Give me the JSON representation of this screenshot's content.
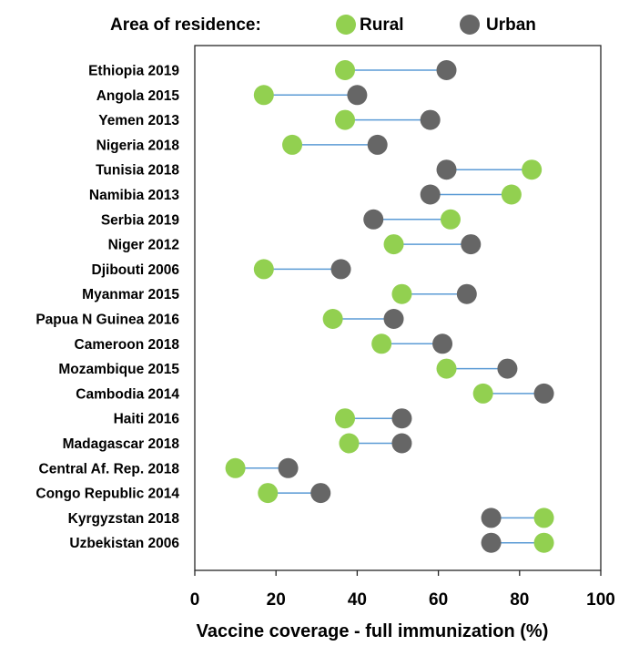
{
  "chart_data": {
    "type": "dumbbell",
    "legend": {
      "title": "Area of residence:",
      "placement": "top",
      "entries": [
        "Rural",
        "Urban"
      ]
    },
    "xlabel": "Vaccine coverage - full immunization (%)",
    "ylabel": "",
    "xlim": [
      0,
      100
    ],
    "xticks": [
      0,
      20,
      40,
      60,
      80,
      100
    ],
    "grid": false,
    "categories": [
      "Ethiopia 2019",
      "Angola 2015",
      "Yemen 2013",
      "Nigeria 2018",
      "Tunisia 2018",
      "Namibia 2013",
      "Serbia 2019",
      "Niger 2012",
      "Djibouti 2006",
      "Myanmar 2015",
      "Papua N Guinea 2016",
      "Cameroon 2018",
      "Mozambique 2015",
      "Cambodia 2014",
      "Haiti 2016",
      "Madagascar 2018",
      "Central Af. Rep. 2018",
      "Congo Republic 2014",
      "Kyrgyzstan 2018",
      "Uzbekistan 2006"
    ],
    "series": [
      {
        "name": "Rural",
        "color": "#92d050",
        "values": [
          37,
          17,
          37,
          24,
          83,
          78,
          63,
          49,
          17,
          51,
          34,
          46,
          62,
          71,
          37,
          38,
          10,
          18,
          86,
          86
        ]
      },
      {
        "name": "Urban",
        "color": "#666666",
        "values": [
          62,
          40,
          58,
          45,
          62,
          58,
          44,
          68,
          36,
          67,
          49,
          61,
          77,
          86,
          51,
          51,
          23,
          31,
          73,
          73
        ]
      }
    ],
    "connector_color": "#5b9bd5"
  }
}
